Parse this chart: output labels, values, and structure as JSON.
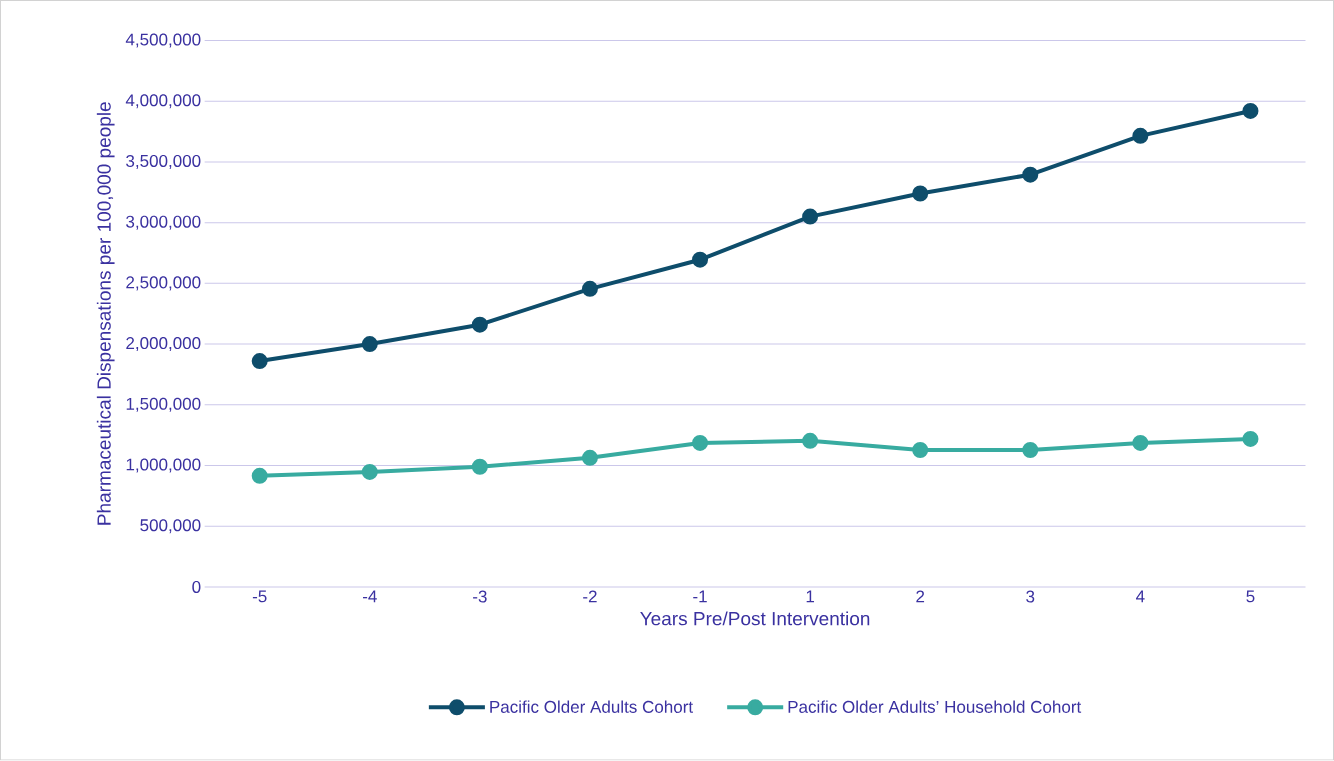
{
  "chart_data": {
    "type": "line",
    "xlabel": "Years Pre/Post Intervention",
    "ylabel": "Pharmaceutical Dispensations per 100,000 people",
    "categories": [
      "-5",
      "-4",
      "-3",
      "-2",
      "-1",
      "1",
      "2",
      "3",
      "4",
      "5"
    ],
    "series": [
      {
        "name": "Pacific Older Adults Cohort",
        "color": "#0e4d6b",
        "values": [
          1860000,
          2000000,
          2160000,
          2455000,
          2695000,
          3050000,
          3240000,
          3395000,
          3715000,
          3920000
        ]
      },
      {
        "name": "Pacific Older Adults’ Household Cohort",
        "color": "#38aba0",
        "values": [
          915000,
          947000,
          990000,
          1063000,
          1186000,
          1203000,
          1128000,
          1128000,
          1186000,
          1219000
        ]
      }
    ],
    "ylim": [
      0,
      4500000
    ],
    "yticks": [
      0,
      {
        "value": 500000,
        "label": "500,000"
      },
      {
        "value": 1000000,
        "label": "1,000,000"
      },
      {
        "value": 1500000,
        "label": "1,500,000"
      },
      {
        "value": 2000000,
        "label": "2,000,000"
      },
      {
        "value": 2500000,
        "label": "2,500,000"
      },
      {
        "value": 3000000,
        "label": "3,000,000"
      },
      {
        "value": 3500000,
        "label": "3,500,000"
      },
      {
        "value": 4000000,
        "label": "4,000,000"
      },
      {
        "value": 4500000,
        "label": "4,500,000"
      }
    ],
    "grid": "y",
    "legend": "bottom",
    "marker": "circle",
    "line_style": "solid"
  }
}
